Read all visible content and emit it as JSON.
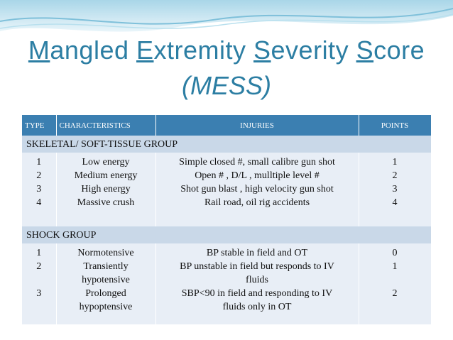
{
  "slide": {
    "title_segments": [
      {
        "initial": "M",
        "rest": "angled "
      },
      {
        "initial": "E",
        "rest": "xtremity "
      },
      {
        "initial": "S",
        "rest": "everity "
      },
      {
        "initial": "S",
        "rest": "core"
      }
    ],
    "subtitle": "(MESS)",
    "accent_color": "#2c7ea3"
  },
  "table": {
    "headers": [
      "TYPE",
      "CHARACTERISTICS",
      "INJURIES",
      "POINTS"
    ],
    "header_color": "#3b7fb1",
    "groups": [
      {
        "name": "SKELETAL/ SOFT-TISSUE GROUP",
        "types": [
          "1",
          "2",
          "3",
          "4"
        ],
        "characteristics": [
          "Low energy",
          "Medium energy",
          "High energy",
          "Massive crush"
        ],
        "injuries": [
          "Simple closed #, small calibre gun shot",
          "Open # , D/L , mulltiple level #",
          "Shot gun blast , high velocity gun shot",
          "Rail road, oil rig accidents"
        ],
        "points": [
          "1",
          "2",
          "3",
          "4"
        ]
      },
      {
        "name": "SHOCK GROUP",
        "types": [
          "1",
          "2",
          "",
          "3"
        ],
        "characteristics": [
          "Normotensive",
          "Transiently",
          "hypotensive",
          "Prolonged",
          "hypoptensive"
        ],
        "injuries": [
          "BP stable in field and OT",
          "BP unstable in field but responds to IV",
          "fluids",
          "SBP<90 in field and responding to IV",
          "fluids only in OT"
        ],
        "points": [
          "0",
          "1",
          "",
          "2"
        ]
      }
    ]
  }
}
